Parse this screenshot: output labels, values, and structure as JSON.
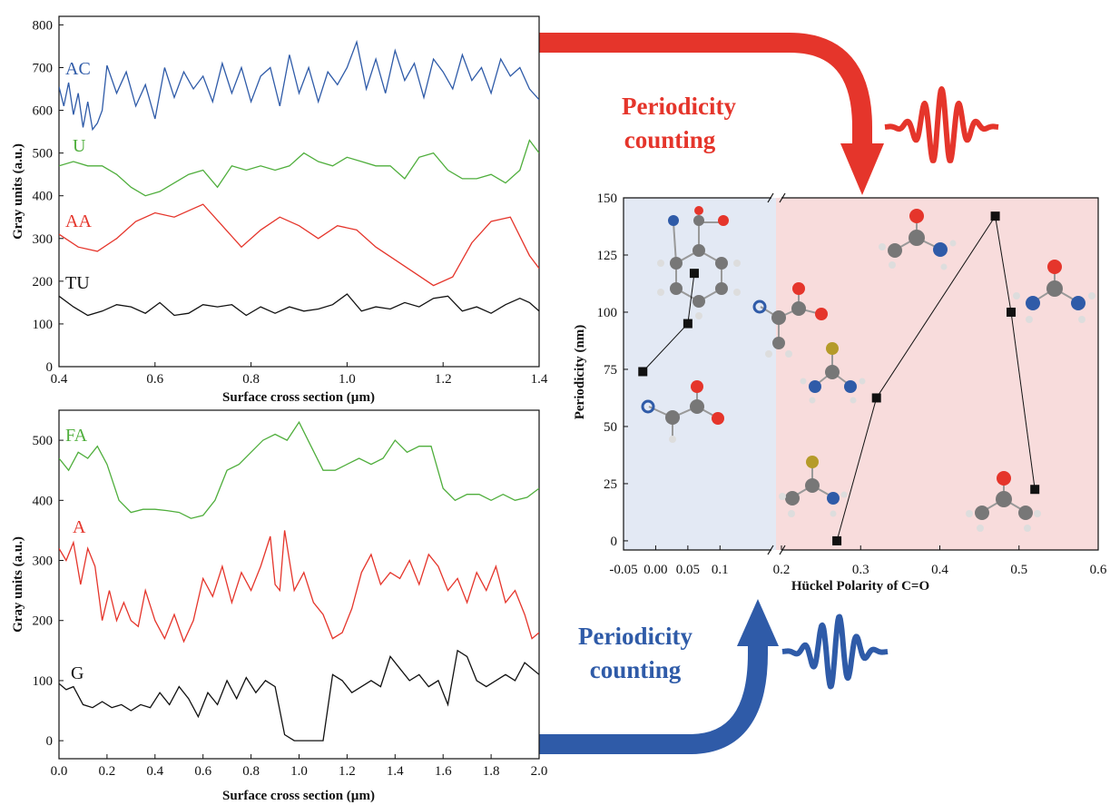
{
  "annotations": {
    "top_arrow_label_1": "Periodicity",
    "top_arrow_label_2": "counting",
    "bottom_arrow_label_1": "Periodicity",
    "bottom_arrow_label_2": "counting"
  },
  "colors": {
    "red": "#e5352b",
    "blue": "#2f5ba8",
    "green": "#4fae3c",
    "black": "#111111",
    "blue_region": "#e3e9f4",
    "red_region": "#f8dcdc"
  },
  "chart_data": [
    {
      "type": "line",
      "xlabel": "Surface cross section (µm)",
      "ylabel": "Gray units (a.u.)",
      "xlim": [
        0.4,
        1.4
      ],
      "ylim": [
        0,
        820
      ],
      "xticks": [
        "0.4",
        "0.6",
        "0.8",
        "1.0",
        "1.2",
        "1.4"
      ],
      "yticks": [
        "0",
        "100",
        "200",
        "300",
        "400",
        "500",
        "600",
        "700",
        "800"
      ],
      "series": [
        {
          "name": "AC",
          "color": "#2f5ba8",
          "x": [
            0.4,
            0.41,
            0.42,
            0.43,
            0.44,
            0.45,
            0.46,
            0.47,
            0.48,
            0.49,
            0.5,
            0.52,
            0.54,
            0.56,
            0.58,
            0.6,
            0.62,
            0.64,
            0.66,
            0.68,
            0.7,
            0.72,
            0.74,
            0.76,
            0.78,
            0.8,
            0.82,
            0.84,
            0.86,
            0.88,
            0.9,
            0.92,
            0.94,
            0.96,
            0.98,
            1.0,
            1.02,
            1.04,
            1.06,
            1.08,
            1.1,
            1.12,
            1.14,
            1.16,
            1.18,
            1.2,
            1.22,
            1.24,
            1.26,
            1.28,
            1.3,
            1.32,
            1.34,
            1.36,
            1.38,
            1.4
          ],
          "y": [
            655,
            610,
            665,
            590,
            640,
            560,
            620,
            555,
            570,
            600,
            705,
            640,
            690,
            610,
            660,
            580,
            700,
            630,
            690,
            650,
            680,
            620,
            710,
            640,
            700,
            620,
            680,
            700,
            610,
            730,
            640,
            700,
            620,
            690,
            660,
            700,
            760,
            650,
            720,
            640,
            740,
            670,
            710,
            630,
            720,
            690,
            650,
            730,
            670,
            700,
            640,
            720,
            680,
            700,
            650,
            625
          ]
        },
        {
          "name": "U",
          "color": "#4fae3c",
          "x": [
            0.4,
            0.43,
            0.46,
            0.49,
            0.52,
            0.55,
            0.58,
            0.61,
            0.64,
            0.67,
            0.7,
            0.73,
            0.76,
            0.79,
            0.82,
            0.85,
            0.88,
            0.91,
            0.94,
            0.97,
            1.0,
            1.03,
            1.06,
            1.09,
            1.12,
            1.15,
            1.18,
            1.21,
            1.24,
            1.27,
            1.3,
            1.33,
            1.36,
            1.38,
            1.4
          ],
          "y": [
            470,
            480,
            470,
            470,
            450,
            420,
            400,
            410,
            430,
            450,
            460,
            420,
            470,
            460,
            470,
            460,
            470,
            500,
            480,
            470,
            490,
            480,
            470,
            470,
            440,
            490,
            500,
            460,
            440,
            440,
            450,
            430,
            460,
            530,
            500
          ]
        },
        {
          "name": "AA",
          "color": "#e5352b",
          "x": [
            0.4,
            0.44,
            0.48,
            0.52,
            0.56,
            0.6,
            0.64,
            0.68,
            0.7,
            0.74,
            0.78,
            0.82,
            0.86,
            0.9,
            0.94,
            0.98,
            1.02,
            1.06,
            1.1,
            1.14,
            1.18,
            1.22,
            1.26,
            1.3,
            1.34,
            1.38,
            1.4
          ],
          "y": [
            310,
            280,
            270,
            300,
            340,
            360,
            350,
            370,
            380,
            330,
            280,
            320,
            350,
            330,
            300,
            330,
            320,
            280,
            250,
            220,
            190,
            210,
            290,
            340,
            350,
            260,
            230
          ]
        },
        {
          "name": "TU",
          "color": "#111111",
          "x": [
            0.4,
            0.43,
            0.46,
            0.49,
            0.52,
            0.55,
            0.58,
            0.61,
            0.64,
            0.67,
            0.7,
            0.73,
            0.76,
            0.79,
            0.82,
            0.85,
            0.88,
            0.91,
            0.94,
            0.97,
            1.0,
            1.03,
            1.06,
            1.09,
            1.12,
            1.15,
            1.18,
            1.21,
            1.24,
            1.27,
            1.3,
            1.33,
            1.36,
            1.38,
            1.4
          ],
          "y": [
            165,
            140,
            120,
            130,
            145,
            140,
            125,
            150,
            120,
            125,
            145,
            140,
            145,
            120,
            140,
            125,
            140,
            130,
            135,
            145,
            170,
            130,
            140,
            135,
            150,
            140,
            160,
            165,
            130,
            140,
            125,
            145,
            160,
            150,
            130
          ]
        }
      ]
    },
    {
      "type": "line",
      "xlabel": "Surface cross section (µm)",
      "ylabel": "Gray units (a.u.)",
      "xlim": [
        0.0,
        2.0
      ],
      "ylim": [
        -30,
        550
      ],
      "xticks": [
        "0.0",
        "0.2",
        "0.4",
        "0.6",
        "0.8",
        "1.0",
        "1.2",
        "1.4",
        "1.6",
        "1.8",
        "2.0"
      ],
      "yticks": [
        "0",
        "100",
        "200",
        "300",
        "400",
        "500"
      ],
      "series": [
        {
          "name": "FA",
          "color": "#4fae3c",
          "x": [
            0.0,
            0.04,
            0.08,
            0.12,
            0.16,
            0.2,
            0.25,
            0.3,
            0.35,
            0.4,
            0.45,
            0.5,
            0.55,
            0.6,
            0.65,
            0.7,
            0.75,
            0.8,
            0.85,
            0.9,
            0.95,
            1.0,
            1.05,
            1.1,
            1.15,
            1.2,
            1.25,
            1.3,
            1.35,
            1.4,
            1.45,
            1.5,
            1.55,
            1.6,
            1.65,
            1.7,
            1.75,
            1.8,
            1.85,
            1.9,
            1.95,
            2.0
          ],
          "y": [
            470,
            450,
            480,
            470,
            490,
            460,
            400,
            380,
            385,
            385,
            383,
            380,
            370,
            375,
            400,
            450,
            460,
            480,
            500,
            510,
            500,
            530,
            490,
            450,
            450,
            460,
            470,
            460,
            470,
            500,
            480,
            490,
            490,
            420,
            400,
            410,
            410,
            400,
            410,
            400,
            405,
            420
          ]
        },
        {
          "name": "A",
          "color": "#e5352b",
          "x": [
            0.0,
            0.03,
            0.06,
            0.09,
            0.12,
            0.15,
            0.18,
            0.21,
            0.24,
            0.27,
            0.3,
            0.33,
            0.36,
            0.4,
            0.44,
            0.48,
            0.52,
            0.56,
            0.6,
            0.64,
            0.68,
            0.72,
            0.76,
            0.8,
            0.84,
            0.88,
            0.9,
            0.92,
            0.94,
            0.98,
            1.02,
            1.06,
            1.1,
            1.14,
            1.18,
            1.22,
            1.26,
            1.3,
            1.34,
            1.38,
            1.42,
            1.46,
            1.5,
            1.54,
            1.58,
            1.62,
            1.66,
            1.7,
            1.74,
            1.78,
            1.82,
            1.86,
            1.9,
            1.94,
            1.97,
            2.0
          ],
          "y": [
            320,
            300,
            330,
            260,
            320,
            290,
            200,
            250,
            200,
            230,
            200,
            190,
            250,
            200,
            170,
            210,
            165,
            200,
            270,
            240,
            290,
            230,
            280,
            250,
            290,
            340,
            260,
            250,
            350,
            250,
            280,
            230,
            210,
            170,
            180,
            220,
            280,
            310,
            260,
            280,
            270,
            300,
            260,
            310,
            290,
            250,
            270,
            230,
            280,
            250,
            290,
            230,
            250,
            210,
            170,
            180
          ]
        },
        {
          "name": "G",
          "color": "#111111",
          "x": [
            0.0,
            0.03,
            0.06,
            0.1,
            0.14,
            0.18,
            0.22,
            0.26,
            0.3,
            0.34,
            0.38,
            0.42,
            0.46,
            0.5,
            0.54,
            0.58,
            0.62,
            0.66,
            0.7,
            0.74,
            0.78,
            0.82,
            0.86,
            0.9,
            0.94,
            0.98,
            1.02,
            1.06,
            1.1,
            1.14,
            1.18,
            1.22,
            1.26,
            1.3,
            1.34,
            1.38,
            1.42,
            1.46,
            1.5,
            1.54,
            1.58,
            1.62,
            1.66,
            1.7,
            1.74,
            1.78,
            1.82,
            1.86,
            1.9,
            1.94,
            1.97,
            2.0
          ],
          "y": [
            95,
            85,
            90,
            60,
            55,
            65,
            55,
            60,
            50,
            60,
            55,
            80,
            60,
            90,
            70,
            40,
            80,
            60,
            100,
            70,
            105,
            80,
            100,
            90,
            10,
            0,
            0,
            0,
            0,
            110,
            100,
            80,
            90,
            100,
            90,
            140,
            120,
            100,
            110,
            90,
            100,
            60,
            150,
            140,
            100,
            90,
            100,
            110,
            100,
            130,
            120,
            110
          ]
        }
      ]
    },
    {
      "type": "scatter",
      "xlabel": "Hückel Polarity of C=O",
      "ylabel": "Periodicity (nm)",
      "xlim": [
        -0.05,
        0.6
      ],
      "ylim": [
        -4,
        150
      ],
      "axis_break_x": 0.19,
      "xticks": [
        "-0.05",
        "0.00",
        "0.05",
        "0.1",
        "0.2",
        "0.3",
        "0.4",
        "0.5",
        "0.6"
      ],
      "yticks": [
        "0",
        "25",
        "50",
        "75",
        "100",
        "125",
        "150"
      ],
      "points": {
        "x": [
          -0.02,
          0.05,
          0.06,
          0.27,
          0.32,
          0.47,
          0.49,
          0.52
        ],
        "y": [
          74,
          95,
          117,
          0,
          62.5,
          142,
          100,
          22.5
        ]
      },
      "connections": [
        [
          0,
          1
        ],
        [
          1,
          2
        ],
        [
          3,
          4
        ],
        [
          4,
          5
        ],
        [
          5,
          6
        ],
        [
          6,
          7
        ]
      ]
    }
  ]
}
